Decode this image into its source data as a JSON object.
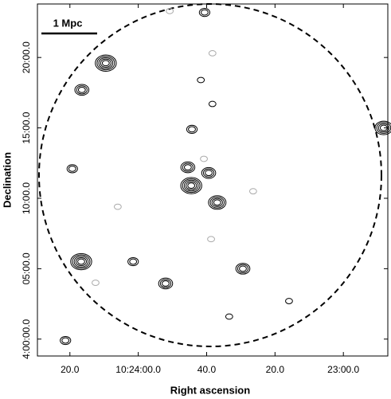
{
  "chart_data": {
    "type": "contour",
    "xlabel": "Right ascension",
    "ylabel": "Declination",
    "scale_label": "1 Mpc",
    "xlim": [
      1469.5,
      1367
    ],
    "ylim": [
      -1.2,
      23.8
    ],
    "xticks": [
      {
        "value": 1460,
        "label": "20.0"
      },
      {
        "value": 1440,
        "label": "10:24:00.0"
      },
      {
        "value": 1420,
        "label": "40.0"
      },
      {
        "value": 1400,
        "label": "20.0"
      },
      {
        "value": 1380,
        "label": "23:00.0"
      }
    ],
    "yticks": [
      {
        "value": 0,
        "label": "4:00:00.0"
      },
      {
        "value": 5,
        "label": "05:00.0"
      },
      {
        "value": 10,
        "label": "10:00.0"
      },
      {
        "value": 15,
        "label": "15:00.0"
      },
      {
        "value": 20,
        "label": "20:00.0"
      }
    ],
    "series": [
      {
        "color": "#000000",
        "x": [
          1449.5,
          1456.5,
          1424.5,
          1425.5,
          1419.4,
          1416.9,
          1424.3,
          1456.7,
          1432,
          1409.4,
          1368.2,
          1420.6,
          1459.3,
          1441.5,
          1461.3,
          1418.3,
          1395.9,
          1413.4,
          1421.7
        ],
        "values": [
          19.6,
          17.7,
          10.9,
          12.2,
          11.8,
          9.7,
          14.9,
          5.5,
          3.95,
          5.0,
          15.0,
          23.2,
          12.1,
          5.5,
          -0.1,
          16.7,
          2.7,
          1.6,
          18.4
        ],
        "levels": [
          5,
          3,
          5,
          3,
          3,
          4,
          2,
          5,
          3,
          3,
          4,
          2,
          2,
          2,
          2,
          1,
          1,
          1,
          1
        ]
      },
      {
        "color": "#aaaaaa",
        "x": [
          1418.3,
          1430.8,
          1446,
          1452.5,
          1418.7,
          1406.4,
          1420.8
        ],
        "values": [
          20.3,
          23.3,
          9.4,
          4.0,
          7.1,
          10.5,
          12.8
        ],
        "levels": [
          1,
          1,
          1,
          1,
          1,
          1,
          1
        ]
      }
    ]
  }
}
